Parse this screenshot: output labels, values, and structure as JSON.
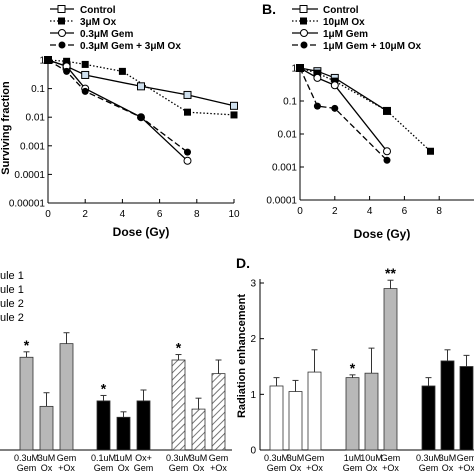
{
  "panels": {
    "A": {
      "label": "",
      "ylabel": "Surviving fraction",
      "xlabel": "Dose (Gy)",
      "legend": [
        "Control",
        "3μM Ox",
        "0.3μM Gem",
        "0.3μM Gem + 3μM Ox"
      ]
    },
    "B": {
      "label": "B.",
      "xlabel": "Dose (Gy)",
      "legend": [
        "Control",
        "10μM Ox",
        "1μM Gem",
        "1μM Gem + 10μM Ox"
      ]
    },
    "C": {
      "label": "",
      "legend": [
        "ule 1",
        "ule 1",
        "ule 2",
        "ule 2"
      ]
    },
    "D": {
      "label": "D.",
      "ylabel": "Radiation enhancement"
    }
  },
  "chart_data": [
    {
      "panel": "A",
      "type": "scatter",
      "xlabel": "Dose (Gy)",
      "ylabel": "Surviving fraction",
      "xlim": [
        0,
        10
      ],
      "ylim": [
        1e-05,
        1
      ],
      "yscale": "log",
      "xticks": [
        "0",
        "2",
        "4",
        "6",
        "8",
        "10"
      ],
      "yticks": [
        "1",
        "0.1",
        "0.01",
        "0.001",
        "0.0001",
        "0.00001"
      ],
      "series": [
        {
          "name": "Control",
          "marker": "open-square",
          "line": "solid",
          "x": [
            0,
            1,
            2,
            5,
            7.5,
            10
          ],
          "y": [
            1,
            0.6,
            0.3,
            0.12,
            0.06,
            0.025
          ]
        },
        {
          "name": "3μM Ox",
          "marker": "filled-square",
          "line": "dotted",
          "x": [
            0,
            1,
            2,
            4,
            7.5,
            10
          ],
          "y": [
            1,
            0.9,
            0.7,
            0.4,
            0.015,
            0.012
          ]
        },
        {
          "name": "0.3μM Gem",
          "marker": "half-circle",
          "line": "solid",
          "x": [
            0,
            1,
            2,
            5,
            7.5
          ],
          "y": [
            1,
            0.6,
            0.1,
            0.01,
            0.0003
          ]
        },
        {
          "name": "0.3μM Gem + 3μM Ox",
          "marker": "filled-circle",
          "line": "dashed",
          "x": [
            0,
            1,
            2,
            5,
            7.5
          ],
          "y": [
            1,
            0.4,
            0.08,
            0.01,
            0.0006
          ]
        }
      ]
    },
    {
      "panel": "B",
      "type": "scatter",
      "xlabel": "Dose (Gy)",
      "xlim": [
        0,
        10
      ],
      "ylim": [
        0.0001,
        1
      ],
      "yscale": "log",
      "xticks": [
        "0",
        "2",
        "4",
        "6",
        "8"
      ],
      "yticks": [
        "1",
        "0.1",
        "0.01",
        "0.001",
        "0.0001"
      ],
      "series": [
        {
          "name": "Control",
          "marker": "open-square",
          "line": "solid",
          "x": [
            0,
            1,
            2,
            5
          ],
          "y": [
            1,
            0.8,
            0.5,
            0.05
          ]
        },
        {
          "name": "10μM Ox",
          "marker": "filled-square",
          "line": "dotted",
          "x": [
            0,
            1,
            2,
            5,
            7.5
          ],
          "y": [
            1,
            0.7,
            0.4,
            0.05,
            0.003
          ]
        },
        {
          "name": "1μM Gem",
          "marker": "half-circle",
          "line": "solid",
          "x": [
            0,
            1,
            2,
            5
          ],
          "y": [
            1,
            0.5,
            0.3,
            0.003
          ]
        },
        {
          "name": "1μM Gem + 10μM Ox",
          "marker": "filled-circle",
          "line": "dashed",
          "x": [
            0,
            1,
            2,
            5
          ],
          "y": [
            1,
            0.07,
            0.06,
            0.0016
          ]
        }
      ]
    },
    {
      "panel": "C",
      "type": "bar",
      "ylim": [
        0,
        3.3
      ],
      "groups": [
        {
          "fill": "gray",
          "categories": [
            [
              "0.3uM",
              "Gem"
            ],
            [
              "3uM",
              "Ox"
            ],
            [
              "Gem",
              "+Ox"
            ]
          ],
          "values": [
            1.7,
            0.8,
            1.95
          ],
          "errors": [
            0.1,
            0.25,
            0.2
          ],
          "stars": [
            "*",
            "",
            ""
          ]
        },
        {
          "fill": "black",
          "categories": [
            [
              "0.1uM",
              "Gem"
            ],
            [
              "1uM",
              "Ox"
            ],
            [
              "Ox+",
              "Gem"
            ]
          ],
          "values": [
            0.9,
            0.6,
            0.9
          ],
          "errors": [
            0.1,
            0.1,
            0.2
          ],
          "stars": [
            "*",
            "",
            ""
          ]
        },
        {
          "fill": "hatched",
          "categories": [
            [
              "0.3uM",
              "Gem"
            ],
            [
              "3uM",
              "Ox"
            ],
            [
              "Gem",
              "+Ox"
            ]
          ],
          "values": [
            1.65,
            0.75,
            1.4
          ],
          "errors": [
            0.1,
            0.2,
            0.25
          ],
          "stars": [
            "*",
            "",
            ""
          ]
        }
      ]
    },
    {
      "panel": "D",
      "type": "bar",
      "ylabel": "Radiation enhancement",
      "ylim": [
        0,
        3
      ],
      "yticks": [
        "0",
        "1",
        "2",
        "3"
      ],
      "groups": [
        {
          "fill": "white",
          "categories": [
            [
              "0.3uM",
              "Gem"
            ],
            [
              "3uM",
              "Ox"
            ],
            [
              "Gem",
              "+Ox"
            ]
          ],
          "values": [
            1.15,
            1.05,
            1.4
          ],
          "errors": [
            0.15,
            0.2,
            0.4
          ],
          "stars": [
            "",
            "",
            ""
          ]
        },
        {
          "fill": "gray",
          "categories": [
            [
              "1uM",
              "Gem"
            ],
            [
              "10uM",
              "Ox"
            ],
            [
              "Gem",
              "+Ox"
            ]
          ],
          "values": [
            1.3,
            1.38,
            2.9
          ],
          "errors": [
            0.05,
            0.45,
            0.15
          ],
          "stars": [
            "*",
            "",
            "**"
          ]
        },
        {
          "fill": "black",
          "categories": [
            [
              "0.3uM",
              "Gem"
            ],
            [
              "3uM",
              "Ox"
            ],
            [
              "Gem",
              "+Ox"
            ]
          ],
          "values": [
            1.15,
            1.6,
            1.5
          ],
          "errors": [
            0.15,
            0.2,
            0.2
          ],
          "stars": [
            "",
            "",
            ""
          ]
        }
      ]
    }
  ]
}
